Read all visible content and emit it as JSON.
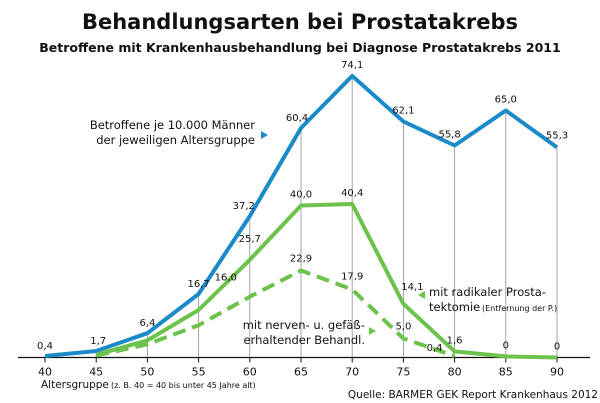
{
  "chart_data": {
    "type": "line",
    "title": "Behandlungsarten bei Prostatakrebs",
    "subtitle": "Betroffene mit Krankenhausbehandlung bei Diagnose Prostatakrebs 2011",
    "x": [
      40,
      45,
      50,
      55,
      60,
      65,
      70,
      75,
      80,
      85,
      90
    ],
    "xlabel": "Altersgruppe",
    "xlabel_note": "(z. B. 40 = 40 bis unter 45 Jahre alt)",
    "ylim": [
      0,
      80
    ],
    "grid": "vertical",
    "series": [
      {
        "name": "Betroffene je 10.000 Männer der jeweiligen Altersgruppe",
        "name_lines": [
          "Betroffene je 10.000 Männer",
          "der jeweiligen Altersgruppe"
        ],
        "x": [
          40,
          45,
          50,
          55,
          60,
          65,
          70,
          75,
          80,
          85,
          90
        ],
        "values": [
          0.4,
          1.7,
          6.4,
          16.7,
          37.2,
          60.4,
          74.1,
          62.1,
          55.8,
          65.0,
          55.3
        ],
        "labels": [
          "0,4",
          "1,7",
          "6,4",
          "16,7",
          "37,2",
          "60,4",
          "74,1",
          "62,1",
          "55,8",
          "65,0",
          "55,3"
        ],
        "color": "#1b8ac8",
        "style": "solid"
      },
      {
        "name": "mit radikaler Prostatektomie (Entfernung der P.)",
        "name_lines": [
          "mit radikaler Prosta-",
          "tektomie"
        ],
        "name_note": "(Entfernung der P.)",
        "x": [
          45,
          50,
          55,
          60,
          65,
          70,
          75,
          80,
          85,
          90
        ],
        "values": [
          0.7,
          4.5,
          12.5,
          25.7,
          40.0,
          40.4,
          14.1,
          1.6,
          0.3,
          0
        ],
        "labels": [
          "",
          "",
          "",
          "25,7",
          "40,0",
          "40,4",
          "14,1",
          "1,6",
          "0",
          "0"
        ],
        "color": "#6cc24a",
        "style": "solid"
      },
      {
        "name": "mit nerven- u. gefäß-erhaltender Behandl.",
        "name_lines": [
          "mit nerven- u. gefäß-",
          "erhaltender Behandl."
        ],
        "x": [
          45,
          50,
          55,
          60,
          65,
          70,
          75,
          80
        ],
        "values": [
          0.5,
          3.5,
          8.5,
          16.0,
          22.9,
          17.9,
          5.0,
          0.4
        ],
        "labels": [
          "",
          "",
          "",
          "16,0",
          "22,9",
          "17,9",
          "5,0",
          "0,4"
        ],
        "color": "#6cc24a",
        "style": "dashed"
      }
    ],
    "source": "Quelle: BARMER GEK Report Krankenhaus 2012"
  }
}
